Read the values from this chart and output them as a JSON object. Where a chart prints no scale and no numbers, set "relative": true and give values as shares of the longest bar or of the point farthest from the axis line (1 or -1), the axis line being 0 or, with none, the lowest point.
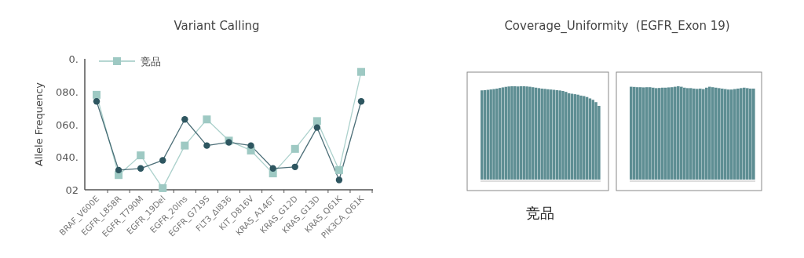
{
  "chart_data": [
    {
      "type": "line",
      "title": "Variant Calling",
      "ylabel": "Allele Frequency",
      "categories": [
        "BRAF_V600E",
        "EGFR_L858R",
        "EGFR_T790M",
        "EGFR_19Del",
        "EGFR_20Ins",
        "EGFR_G719S",
        "FLT3_ΔI836",
        "KIT_D816V",
        "KRAS_A146T",
        "KRAS_G12D",
        "KRAS_G13D",
        "KRAS_Q61K",
        "PIK3CA_Q61K"
      ],
      "relative": true,
      "annotations": [
        "02",
        "040.",
        "060.",
        "080.",
        "0."
      ],
      "legend": "top left",
      "series": [
        {
          "name": "竞品",
          "color": "#9ec9c3",
          "marker": "square",
          "values": [
            0.806,
            0.125,
            0.292,
            0.014,
            0.375,
            0.597,
            0.417,
            0.333,
            0.139,
            0.347,
            0.583,
            0.167,
            1.0
          ]
        },
        {
          "color": "#2e5660",
          "marker": "circle",
          "values": [
            0.75,
            0.167,
            0.181,
            0.25,
            0.597,
            0.375,
            0.403,
            0.375,
            0.181,
            0.194,
            0.528,
            0.083,
            0.75
          ]
        }
      ]
    },
    {
      "type": "bar",
      "title": "Coverage_Uniformity  (EGFR_Exon 19)",
      "xlabel": "竞品",
      "relative": true,
      "color": "#5e8e93",
      "categories": [
        null,
        null,
        null,
        null,
        null,
        null,
        null,
        null,
        null,
        null,
        null,
        null,
        null,
        null,
        null,
        null,
        null,
        null,
        null,
        null,
        null,
        null,
        null,
        null,
        null,
        null,
        null,
        null,
        null,
        null,
        null,
        null,
        null,
        null,
        null,
        null,
        null,
        null,
        null,
        null
      ],
      "values": [
        0.956,
        0.958,
        0.962,
        0.966,
        0.97,
        0.975,
        0.982,
        0.988,
        0.994,
        0.998,
        1.0,
        1.0,
        0.998,
        1.0,
        1.0,
        0.998,
        0.995,
        0.99,
        0.985,
        0.98,
        0.975,
        0.972,
        0.968,
        0.965,
        0.962,
        0.958,
        0.955,
        0.95,
        0.94,
        0.925,
        0.92,
        0.915,
        0.91,
        0.9,
        0.895,
        0.885,
        0.87,
        0.855,
        0.83,
        0.79
      ]
    },
    {
      "type": "bar",
      "relative": true,
      "color": "#5e8e93",
      "categories": [
        null,
        null,
        null,
        null,
        null,
        null,
        null,
        null,
        null,
        null,
        null,
        null,
        null,
        null,
        null,
        null,
        null,
        null,
        null,
        null,
        null,
        null,
        null,
        null,
        null,
        null,
        null,
        null,
        null,
        null,
        null,
        null,
        null,
        null,
        null,
        null,
        null,
        null,
        null,
        null
      ],
      "values": [
        0.995,
        0.993,
        0.99,
        0.99,
        0.988,
        0.99,
        0.99,
        0.985,
        0.98,
        0.982,
        0.985,
        0.985,
        0.988,
        0.99,
        0.995,
        1.0,
        0.995,
        0.985,
        0.98,
        0.98,
        0.975,
        0.972,
        0.975,
        0.97,
        0.985,
        0.995,
        0.99,
        0.985,
        0.98,
        0.975,
        0.97,
        0.965,
        0.965,
        0.97,
        0.975,
        0.98,
        0.985,
        0.98,
        0.975,
        0.975
      ]
    }
  ]
}
